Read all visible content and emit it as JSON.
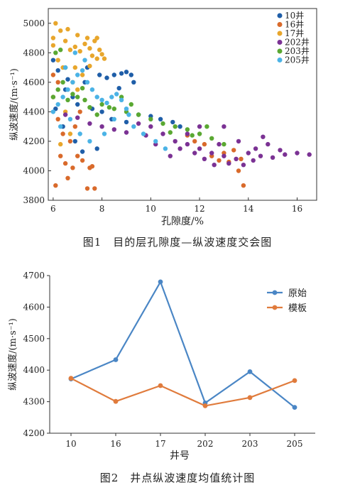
{
  "chart_data": [
    {
      "type": "scatter",
      "title": "",
      "xlabel": "孔隙度/%",
      "ylabel": "纵波速度/(m·s⁻¹)",
      "xlim": [
        5.8,
        16.8
      ],
      "ylim": [
        3800,
        5100
      ],
      "xticks": [
        "6",
        "8",
        "10",
        "12",
        "14",
        "16"
      ],
      "yticks": [
        "3800",
        "4000",
        "4200",
        "4400",
        "4600",
        "4800",
        "5000"
      ],
      "legend_position": "top-right",
      "series": [
        {
          "name": "10井",
          "color": "#1f5ea8",
          "points": [
            [
              6.0,
              4750
            ],
            [
              6.2,
              4680
            ],
            [
              6.5,
              4550
            ],
            [
              6.8,
              4500
            ],
            [
              7.0,
              4450
            ],
            [
              7.3,
              4600
            ],
            [
              7.6,
              4420
            ],
            [
              7.9,
              4650
            ],
            [
              8.2,
              4630
            ],
            [
              8.5,
              4650
            ],
            [
              8.8,
              4660
            ],
            [
              9.0,
              4670
            ],
            [
              9.2,
              4650
            ],
            [
              9.3,
              4600
            ],
            [
              6.4,
              4300
            ],
            [
              6.9,
              4200
            ],
            [
              7.8,
              4150
            ],
            [
              8.4,
              4350
            ],
            [
              9.0,
              4330
            ],
            [
              9.5,
              4380
            ],
            [
              10.0,
              4370
            ],
            [
              10.4,
              4350
            ],
            [
              10.9,
              4330
            ],
            [
              11.2,
              4300
            ],
            [
              7.2,
              4130
            ],
            [
              8.0,
              4400
            ],
            [
              6.1,
              4420
            ],
            [
              6.6,
              4620
            ],
            [
              7.4,
              4700
            ],
            [
              8.7,
              4560
            ]
          ]
        },
        {
          "name": "16井",
          "color": "#d96a2b",
          "points": [
            [
              6.0,
              4500
            ],
            [
              6.2,
              4350
            ],
            [
              6.4,
              4250
            ],
            [
              6.3,
              4100
            ],
            [
              6.5,
              4050
            ],
            [
              6.6,
              3950
            ],
            [
              6.8,
              4020
            ],
            [
              7.0,
              4100
            ],
            [
              7.2,
              4070
            ],
            [
              7.4,
              3880
            ],
            [
              7.5,
              4020
            ],
            [
              7.6,
              4030
            ],
            [
              6.1,
              3900
            ],
            [
              6.7,
              4200
            ],
            [
              6.9,
              4300
            ],
            [
              7.1,
              4400
            ],
            [
              12.5,
              4100
            ],
            [
              12.8,
              4070
            ],
            [
              13.0,
              4120
            ],
            [
              13.2,
              4060
            ],
            [
              13.4,
              4140
            ],
            [
              13.6,
              4000
            ],
            [
              13.8,
              3900
            ],
            [
              13.7,
              4080
            ],
            [
              12.2,
              4180
            ],
            [
              11.8,
              4200
            ],
            [
              11.5,
              4240
            ],
            [
              6.2,
              4600
            ],
            [
              6.0,
              4650
            ],
            [
              7.7,
              3880
            ]
          ]
        },
        {
          "name": "17井",
          "color": "#e8a62c",
          "points": [
            [
              6.0,
              4900
            ],
            [
              6.1,
              5000
            ],
            [
              6.3,
              4950
            ],
            [
              6.5,
              4880
            ],
            [
              6.7,
              4820
            ],
            [
              6.9,
              4840
            ],
            [
              7.1,
              4810
            ],
            [
              7.3,
              4860
            ],
            [
              7.5,
              4830
            ],
            [
              7.6,
              4780
            ],
            [
              7.8,
              4760
            ],
            [
              7.9,
              4820
            ],
            [
              8.0,
              4790
            ],
            [
              7.4,
              4900
            ],
            [
              7.0,
              4920
            ],
            [
              6.6,
              4960
            ],
            [
              6.4,
              4700
            ],
            [
              6.8,
              4600
            ],
            [
              7.2,
              4650
            ],
            [
              7.7,
              4880
            ],
            [
              6.2,
              4750
            ],
            [
              6.9,
              4700
            ],
            [
              7.5,
              4710
            ],
            [
              8.1,
              4760
            ],
            [
              6.5,
              4400
            ],
            [
              6.7,
              4250
            ],
            [
              6.3,
              4180
            ],
            [
              7.0,
              4550
            ],
            [
              7.8,
              4900
            ],
            [
              6.0,
              4850
            ]
          ]
        },
        {
          "name": "202井",
          "color": "#7b3294",
          "points": [
            [
              9.5,
              4320
            ],
            [
              10.0,
              4300
            ],
            [
              10.5,
              4250
            ],
            [
              11.0,
              4200
            ],
            [
              11.5,
              4180
            ],
            [
              12.0,
              4150
            ],
            [
              12.5,
              4120
            ],
            [
              13.0,
              4100
            ],
            [
              13.5,
              4080
            ],
            [
              14.0,
              4120
            ],
            [
              14.5,
              4100
            ],
            [
              15.0,
              4090
            ],
            [
              15.5,
              4110
            ],
            [
              16.0,
              4120
            ],
            [
              16.5,
              4110
            ],
            [
              13.2,
              4050
            ],
            [
              13.8,
              4040
            ],
            [
              14.3,
              4150
            ],
            [
              12.8,
              4180
            ],
            [
              12.2,
              4080
            ],
            [
              11.8,
              4120
            ],
            [
              11.2,
              4150
            ],
            [
              10.8,
              4100
            ],
            [
              14.8,
              4180
            ],
            [
              15.3,
              4140
            ],
            [
              13.6,
              4200
            ],
            [
              14.2,
              4070
            ],
            [
              12.6,
              4040
            ],
            [
              11.5,
              4250
            ],
            [
              10.2,
              4180
            ],
            [
              9.8,
              4240
            ],
            [
              7.5,
              4320
            ],
            [
              8.0,
              4300
            ],
            [
              8.5,
              4280
            ],
            [
              9.0,
              4260
            ],
            [
              6.5,
              4380
            ],
            [
              7.0,
              4360
            ],
            [
              13.0,
              4300
            ],
            [
              12.0,
              4300
            ],
            [
              14.6,
              4230
            ]
          ]
        },
        {
          "name": "203井",
          "color": "#5aa832",
          "points": [
            [
              6.0,
              4500
            ],
            [
              6.2,
              4550
            ],
            [
              6.4,
              4600
            ],
            [
              6.6,
              4480
            ],
            [
              6.8,
              4520
            ],
            [
              7.0,
              4500
            ],
            [
              7.2,
              4560
            ],
            [
              7.5,
              4430
            ],
            [
              8.0,
              4450
            ],
            [
              8.5,
              4420
            ],
            [
              9.0,
              4400
            ],
            [
              9.5,
              4380
            ],
            [
              10.0,
              4350
            ],
            [
              10.5,
              4320
            ],
            [
              11.0,
              4300
            ],
            [
              11.5,
              4280
            ],
            [
              12.0,
              4250
            ],
            [
              12.5,
              4220
            ],
            [
              13.0,
              4180
            ],
            [
              6.1,
              4800
            ],
            [
              6.3,
              4820
            ],
            [
              6.5,
              4700
            ],
            [
              7.8,
              4380
            ],
            [
              8.8,
              4500
            ],
            [
              9.2,
              4450
            ],
            [
              10.8,
              4260
            ],
            [
              11.7,
              4240
            ],
            [
              12.3,
              4300
            ],
            [
              7.3,
              4480
            ],
            [
              8.3,
              4430
            ]
          ]
        },
        {
          "name": "205井",
          "color": "#4bb3e6",
          "points": [
            [
              6.0,
              4400
            ],
            [
              6.2,
              4450
            ],
            [
              6.4,
              4500
            ],
            [
              6.6,
              4550
            ],
            [
              6.8,
              4600
            ],
            [
              7.0,
              4650
            ],
            [
              7.2,
              4680
            ],
            [
              7.4,
              4600
            ],
            [
              7.6,
              4550
            ],
            [
              7.8,
              4500
            ],
            [
              8.0,
              4480
            ],
            [
              8.2,
              4460
            ],
            [
              8.4,
              4500
            ],
            [
              8.6,
              4520
            ],
            [
              8.8,
              4480
            ],
            [
              9.0,
              4420
            ],
            [
              6.3,
              4300
            ],
            [
              6.7,
              4350
            ],
            [
              7.1,
              4250
            ],
            [
              7.5,
              4200
            ],
            [
              8.1,
              4250
            ],
            [
              9.3,
              4300
            ],
            [
              9.7,
              4250
            ],
            [
              10.2,
              4200
            ],
            [
              10.6,
              4150
            ],
            [
              6.5,
              4700
            ],
            [
              6.9,
              4800
            ],
            [
              7.3,
              4750
            ],
            [
              8.5,
              4350
            ],
            [
              9.1,
              4380
            ]
          ]
        }
      ]
    },
    {
      "type": "line",
      "title": "",
      "xlabel": "井号",
      "ylabel": "纵波速度/(m·s⁻¹)",
      "categories": [
        "10",
        "16",
        "17",
        "202",
        "203",
        "205"
      ],
      "ylim": [
        4200,
        4700
      ],
      "yticks": [
        "4200",
        "4300",
        "4400",
        "4500",
        "4600",
        "4700"
      ],
      "legend_position": "top-right",
      "series": [
        {
          "name": "原始",
          "color": "#4a86c5",
          "values": [
            4372,
            4433,
            4680,
            4296,
            4395,
            4282
          ]
        },
        {
          "name": "模板",
          "color": "#e07b3c",
          "values": [
            4374,
            4301,
            4351,
            4287,
            4313,
            4367
          ]
        }
      ]
    }
  ],
  "captions": {
    "fig1": "图1　目的层孔隙度—纵波速度交会图",
    "fig2": "图2　井点纵波速度均值统计图"
  }
}
